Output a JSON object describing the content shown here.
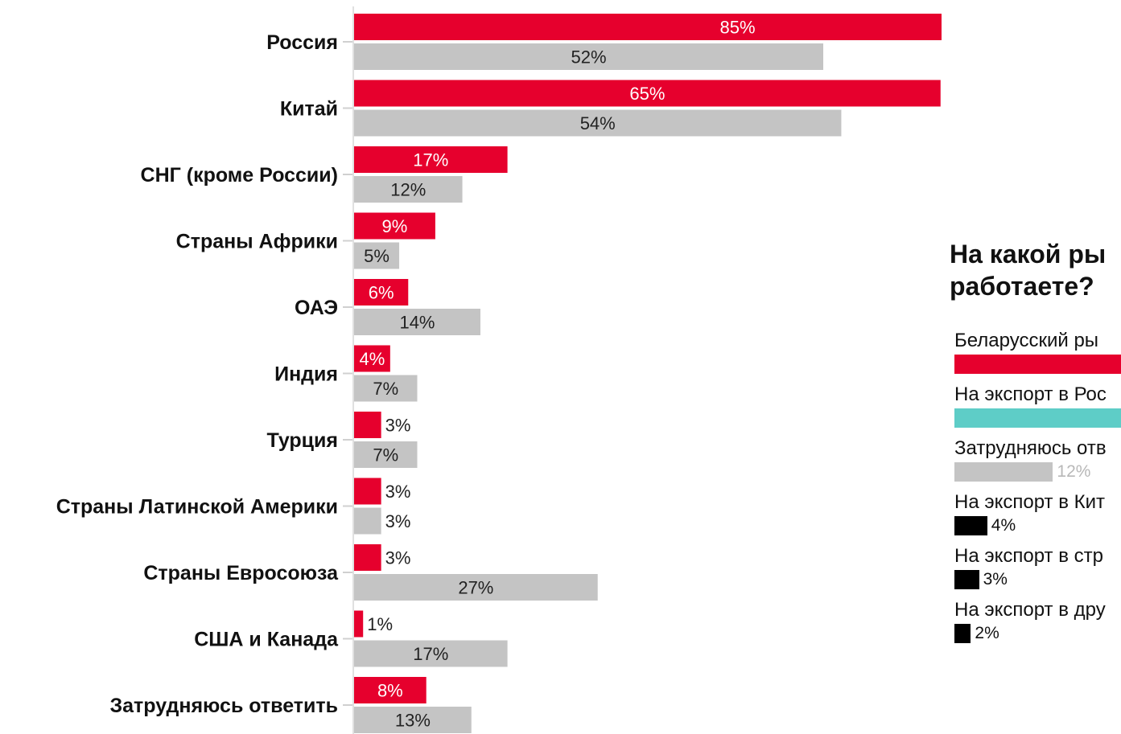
{
  "chart_data": [
    {
      "type": "bar",
      "orientation": "horizontal",
      "categories": [
        "Россия",
        "Китай",
        "СНГ (кроме России)",
        "Страны Африки",
        "ОАЭ",
        "Индия",
        "Турция",
        "Страны Латинской Америки",
        "Страны Евросоюза",
        "США и Канада",
        "Затрудняюсь ответить"
      ],
      "series": [
        {
          "color": "#e6002d",
          "values": [
            85,
            65,
            17,
            9,
            6,
            4,
            3,
            3,
            3,
            1,
            8
          ]
        },
        {
          "color": "#c4c4c4",
          "values": [
            52,
            54,
            12,
            5,
            14,
            7,
            7,
            3,
            27,
            17,
            13
          ]
        }
      ],
      "value_labels": [
        [
          "85%",
          "65%",
          "17%",
          "9%",
          "6%",
          "4%",
          "3%",
          "3%",
          "3%",
          "1%",
          "8%"
        ],
        [
          "52%",
          "54%",
          "12%",
          "5%",
          "14%",
          "7%",
          "7%",
          "3%",
          "27%",
          "17%",
          "13%"
        ]
      ],
      "xlim": [
        0,
        85
      ],
      "grid": false,
      "legend": "none"
    },
    {
      "type": "bar",
      "orientation": "horizontal",
      "title": "На какой ры работаете?",
      "title_lines": [
        "На какой ры",
        "работаете?"
      ],
      "items": [
        {
          "label": "Беларусский ры",
          "color": "#e6002d",
          "value": null,
          "value_label": ""
        },
        {
          "label": "На экспорт в Рос",
          "color": "#5ecdc7",
          "value": null,
          "value_label": ""
        },
        {
          "label": "Затрудняюсь отв",
          "color": "#c4c4c4",
          "value": 12,
          "value_label": "12%"
        },
        {
          "label": "На экспорт в Кит",
          "color": "#000000",
          "value": 4,
          "value_label": "4%"
        },
        {
          "label": "На экспорт в стр",
          "color": "#000000",
          "value": 3,
          "value_label": "3%"
        },
        {
          "label": "На экспорт в дру",
          "color": "#000000",
          "value": 2,
          "value_label": "2%"
        }
      ]
    }
  ]
}
